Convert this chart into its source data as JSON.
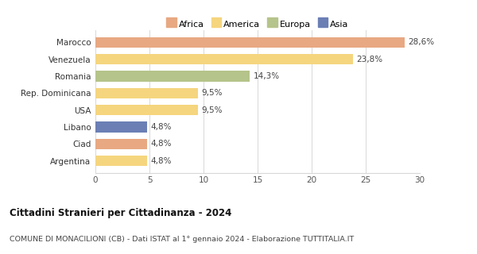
{
  "categories": [
    "Argentina",
    "Ciad",
    "Libano",
    "USA",
    "Rep. Dominicana",
    "Romania",
    "Venezuela",
    "Marocco"
  ],
  "values": [
    4.8,
    4.8,
    4.8,
    9.5,
    9.5,
    14.3,
    23.8,
    28.6
  ],
  "labels": [
    "4,8%",
    "4,8%",
    "4,8%",
    "9,5%",
    "9,5%",
    "14,3%",
    "23,8%",
    "28,6%"
  ],
  "colors": [
    "#f5d57e",
    "#e8a882",
    "#6b7fb5",
    "#f5d57e",
    "#f5d57e",
    "#b5c48a",
    "#f5d57e",
    "#e8a882"
  ],
  "legend_labels": [
    "Africa",
    "America",
    "Europa",
    "Asia"
  ],
  "legend_colors": [
    "#e8a882",
    "#f5d57e",
    "#b5c48a",
    "#6b7fb5"
  ],
  "title": "Cittadini Stranieri per Cittadinanza - 2024",
  "subtitle": "COMUNE DI MONACILIONI (CB) - Dati ISTAT al 1° gennaio 2024 - Elaborazione TUTTITALIA.IT",
  "xlim": [
    0,
    30
  ],
  "xticks": [
    0,
    5,
    10,
    15,
    20,
    25,
    30
  ],
  "background_color": "#ffffff",
  "bar_height": 0.62,
  "grid_color": "#d8d8d8"
}
